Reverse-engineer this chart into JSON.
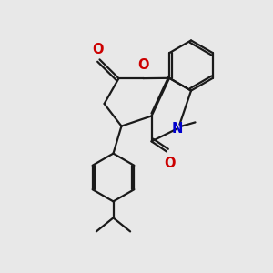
{
  "bg_color": "#e8e8e8",
  "bond_color": "#1a1a1a",
  "N_color": "#0000cc",
  "O_color": "#cc0000",
  "lw": 1.6,
  "xlim": [
    0,
    10
  ],
  "ylim": [
    0,
    10
  ],
  "figsize": [
    3.0,
    3.0
  ],
  "dpi": 100
}
